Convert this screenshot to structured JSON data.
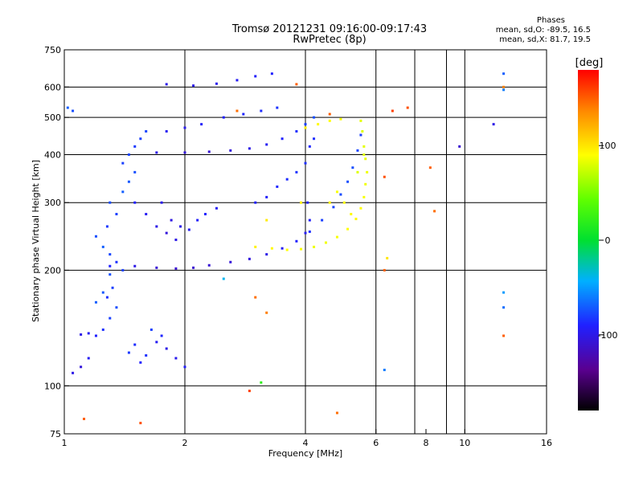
{
  "header": {
    "title_line1": "Tromsø 20121231 09:16:00-09:17:43",
    "title_line2": "RwPretec (8p)"
  },
  "phase_info": {
    "title": "Phases",
    "o_line": "mean, sd,O: -89.5, 16.5",
    "x_line": "mean, sd,X: 81.7, 19.5"
  },
  "colorbar": {
    "label": "[deg]",
    "tick_labels": [
      "100",
      "0",
      "-100"
    ],
    "tick_values": [
      100,
      0,
      -100
    ],
    "range": [
      -180,
      180
    ]
  },
  "chart_data": {
    "type": "scatter",
    "xlabel": "Frequency [MHz]",
    "ylabel": "Stationary phase Virtual Height [km]",
    "xscale": "log",
    "yscale": "log",
    "xlim": [
      1,
      16
    ],
    "ylim": [
      75,
      750
    ],
    "x_ticks": [
      1,
      2,
      4,
      6,
      8,
      10,
      16
    ],
    "x_tick_labels": [
      "1",
      "2",
      "4",
      "6",
      "8",
      "10",
      "16"
    ],
    "x_grid": [
      2,
      4,
      6,
      7.5,
      9,
      10
    ],
    "y_ticks": [
      75,
      100,
      200,
      300,
      400,
      500,
      600,
      750
    ],
    "y_tick_labels": [
      "75",
      "100",
      "200",
      "300",
      "400",
      "500",
      "600",
      "750"
    ],
    "y_grid": [
      100,
      200,
      300,
      400,
      500,
      600
    ],
    "color_by": "phase [deg]",
    "grid": true,
    "series": [
      {
        "points": [
          [
            1.05,
            108,
            -100
          ],
          [
            1.1,
            112,
            -105
          ],
          [
            1.15,
            118,
            -95
          ],
          [
            1.2,
            135,
            -90
          ],
          [
            1.1,
            136,
            -100
          ],
          [
            1.15,
            137,
            -95
          ],
          [
            1.25,
            140,
            -85
          ],
          [
            1.3,
            150,
            -80
          ],
          [
            1.35,
            160,
            -75
          ],
          [
            1.28,
            170,
            -85
          ],
          [
            1.32,
            180,
            -80
          ],
          [
            1.3,
            195,
            -75
          ],
          [
            1.2,
            165,
            -70
          ],
          [
            1.25,
            175,
            -72
          ],
          [
            1.4,
            200,
            -80
          ],
          [
            1.35,
            210,
            -85
          ],
          [
            1.3,
            220,
            -78
          ],
          [
            1.25,
            230,
            -70
          ],
          [
            1.2,
            245,
            -75
          ],
          [
            1.28,
            260,
            -82
          ],
          [
            1.35,
            280,
            -80
          ],
          [
            1.3,
            300,
            -76
          ],
          [
            1.4,
            320,
            -70
          ],
          [
            1.45,
            340,
            -72
          ],
          [
            1.5,
            360,
            -75
          ],
          [
            1.4,
            380,
            -80
          ],
          [
            1.45,
            400,
            -78
          ],
          [
            1.5,
            420,
            -82
          ],
          [
            1.55,
            440,
            -80
          ],
          [
            1.6,
            460,
            -78
          ],
          [
            1.5,
            300,
            -90
          ],
          [
            1.6,
            280,
            -95
          ],
          [
            1.7,
            260,
            -100
          ],
          [
            1.8,
            250,
            -105
          ],
          [
            1.9,
            240,
            -100
          ],
          [
            1.75,
            300,
            -98
          ],
          [
            1.85,
            270,
            -102
          ],
          [
            1.95,
            260,
            -100
          ],
          [
            2.05,
            255,
            -95
          ],
          [
            2.15,
            270,
            -92
          ],
          [
            2.25,
            280,
            -90
          ],
          [
            2.4,
            290,
            -95
          ],
          [
            1.55,
            115,
            -90
          ],
          [
            1.6,
            120,
            -85
          ],
          [
            1.7,
            130,
            -95
          ],
          [
            1.8,
            125,
            -100
          ],
          [
            1.9,
            118,
            -98
          ],
          [
            2.0,
            112,
            -92
          ],
          [
            1.65,
            140,
            -80
          ],
          [
            1.75,
            135,
            -88
          ],
          [
            1.45,
            122,
            -82
          ],
          [
            1.5,
            128,
            -86
          ],
          [
            1.3,
            205,
            -90
          ],
          [
            1.5,
            205,
            -100
          ],
          [
            1.7,
            203,
            -108
          ],
          [
            1.9,
            202,
            -110
          ],
          [
            2.1,
            203,
            -110
          ],
          [
            2.3,
            206,
            -108
          ],
          [
            2.6,
            210,
            -106
          ],
          [
            2.9,
            214,
            -104
          ],
          [
            3.2,
            220,
            -100
          ],
          [
            3.5,
            228,
            -95
          ],
          [
            3.8,
            238,
            -90
          ],
          [
            4.1,
            252,
            -85
          ],
          [
            4.4,
            270,
            -80
          ],
          [
            4.7,
            292,
            -78
          ],
          [
            4.9,
            315,
            -76
          ],
          [
            5.1,
            340,
            -75
          ],
          [
            5.25,
            370,
            -75
          ],
          [
            5.4,
            410,
            -78
          ],
          [
            5.5,
            450,
            -80
          ],
          [
            1.7,
            405,
            -100
          ],
          [
            2.0,
            405,
            -105
          ],
          [
            2.3,
            407,
            -108
          ],
          [
            2.6,
            410,
            -105
          ],
          [
            2.9,
            415,
            -100
          ],
          [
            3.2,
            425,
            -95
          ],
          [
            3.5,
            440,
            -90
          ],
          [
            3.8,
            460,
            -85
          ],
          [
            4.0,
            480,
            -80
          ],
          [
            4.2,
            500,
            -75
          ],
          [
            1.8,
            610,
            -100
          ],
          [
            2.1,
            605,
            -100
          ],
          [
            2.4,
            612,
            -98
          ],
          [
            2.7,
            625,
            -95
          ],
          [
            3.0,
            640,
            -92
          ],
          [
            3.3,
            650,
            -90
          ],
          [
            1.8,
            460,
            -95
          ],
          [
            2.0,
            470,
            -98
          ],
          [
            2.2,
            480,
            -92
          ],
          [
            2.5,
            500,
            -90
          ],
          [
            2.8,
            510,
            -88
          ],
          [
            3.1,
            520,
            -86
          ],
          [
            3.4,
            530,
            -84
          ],
          [
            3.0,
            300,
            -90
          ],
          [
            3.2,
            310,
            -92
          ],
          [
            3.4,
            330,
            -88
          ],
          [
            3.6,
            345,
            -86
          ],
          [
            3.8,
            360,
            -84
          ],
          [
            4.0,
            380,
            -85
          ],
          [
            4.1,
            420,
            -88
          ],
          [
            4.2,
            440,
            -86
          ],
          [
            4.05,
            300,
            -90
          ],
          [
            4.1,
            270,
            -92
          ],
          [
            4.0,
            250,
            -95
          ]
        ]
      },
      {
        "points": [
          [
            3.0,
            230,
            95
          ],
          [
            3.3,
            228,
            92
          ],
          [
            3.6,
            226,
            90
          ],
          [
            3.9,
            227,
            88
          ],
          [
            4.2,
            230,
            85
          ],
          [
            4.5,
            236,
            86
          ],
          [
            4.8,
            244,
            88
          ],
          [
            5.1,
            256,
            90
          ],
          [
            5.35,
            272,
            92
          ],
          [
            5.5,
            290,
            90
          ],
          [
            5.6,
            310,
            88
          ],
          [
            5.65,
            335,
            86
          ],
          [
            5.7,
            360,
            85
          ],
          [
            5.65,
            390,
            84
          ],
          [
            5.6,
            420,
            82
          ],
          [
            5.55,
            460,
            80
          ],
          [
            5.5,
            490,
            82
          ],
          [
            4.0,
            470,
            95
          ],
          [
            4.3,
            480,
            92
          ],
          [
            4.6,
            490,
            90
          ],
          [
            4.9,
            495,
            88
          ],
          [
            5.0,
            300,
            90
          ],
          [
            5.2,
            280,
            92
          ],
          [
            4.8,
            320,
            88
          ],
          [
            4.6,
            300,
            94
          ],
          [
            3.9,
            300,
            96
          ],
          [
            3.2,
            270,
            98
          ],
          [
            5.4,
            360,
            80
          ],
          [
            5.6,
            400,
            82
          ]
        ]
      },
      {
        "points": [
          [
            1.12,
            82,
            150
          ],
          [
            1.55,
            80,
            155
          ],
          [
            2.9,
            97,
            160
          ],
          [
            3.2,
            155,
            140
          ],
          [
            4.8,
            85,
            145
          ],
          [
            6.3,
            200,
            150
          ],
          [
            6.6,
            520,
            160
          ],
          [
            7.2,
            530,
            155
          ],
          [
            8.2,
            370,
            150
          ],
          [
            8.4,
            285,
            145
          ],
          [
            12.5,
            600,
            140
          ],
          [
            12.5,
            135,
            150
          ],
          [
            6.3,
            350,
            155
          ],
          [
            3.0,
            170,
            145
          ],
          [
            4.6,
            510,
            150
          ],
          [
            3.8,
            610,
            150
          ],
          [
            2.7,
            520,
            145
          ]
        ]
      },
      {
        "points": [
          [
            9.7,
            420,
            -110
          ],
          [
            11.8,
            480,
            -100
          ],
          [
            12.5,
            650,
            -70
          ],
          [
            12.5,
            590,
            -60
          ],
          [
            12.5,
            175,
            -50
          ],
          [
            12.5,
            160,
            -65
          ],
          [
            6.3,
            110,
            -60
          ],
          [
            3.1,
            102,
            20
          ],
          [
            2.5,
            190,
            -40
          ],
          [
            6.4,
            215,
            100
          ],
          [
            1.02,
            530,
            -70
          ],
          [
            1.05,
            520,
            -75
          ]
        ]
      }
    ]
  }
}
